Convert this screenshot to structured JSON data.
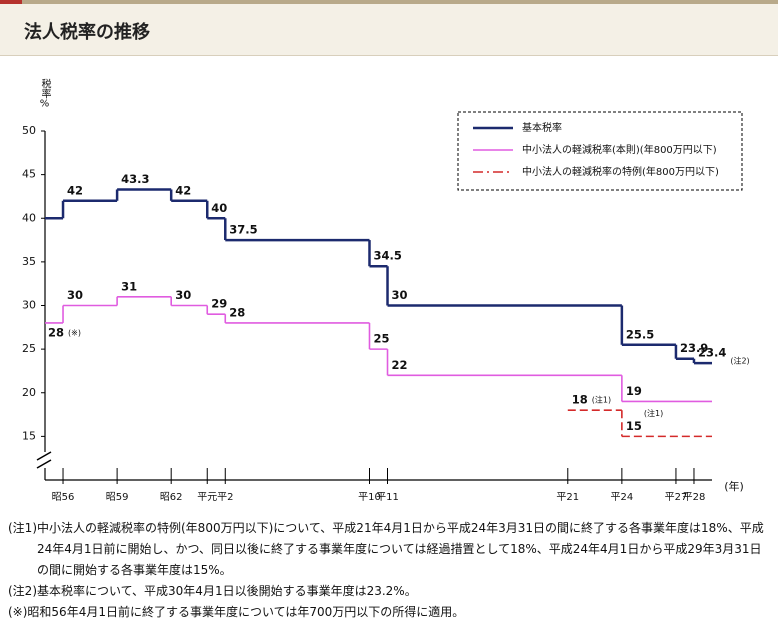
{
  "header": {
    "title": "法人税率の推移"
  },
  "chart_data": {
    "type": "step",
    "y_label": "税率%",
    "x_label": "(年)",
    "xlim": [
      1980,
      2017
    ],
    "ylim": [
      10,
      50
    ],
    "yticks": [
      15,
      20,
      25,
      30,
      35,
      40,
      45,
      50
    ],
    "xticks": [
      {
        "value": 1981,
        "label": "昭56"
      },
      {
        "value": 1984,
        "label": "昭59"
      },
      {
        "value": 1987,
        "label": "昭62"
      },
      {
        "value": 1989,
        "label": "平元"
      },
      {
        "value": 1990,
        "label": "平2"
      },
      {
        "value": 1998,
        "label": "平10"
      },
      {
        "value": 1999,
        "label": "平11"
      },
      {
        "value": 2009,
        "label": "平21"
      },
      {
        "value": 2012,
        "label": "平24"
      },
      {
        "value": 2015,
        "label": "平27"
      },
      {
        "value": 2016,
        "label": "平28"
      }
    ],
    "series": [
      {
        "name": "基本税率",
        "color": "#1c2a6e",
        "dash": false,
        "x": [
          1980,
          1981,
          1984,
          1987,
          1989,
          1990,
          1998,
          1999,
          2012,
          2015,
          2016
        ],
        "values": [
          40,
          42,
          43.3,
          42,
          40,
          37.5,
          34.5,
          30,
          25.5,
          23.9,
          23.4
        ],
        "point_notes": [
          null,
          null,
          null,
          null,
          null,
          null,
          null,
          null,
          null,
          null,
          "(注2)"
        ]
      },
      {
        "name": "中小法人の軽減税率(本則)(年800万円以下)",
        "color": "#e05ce0",
        "dash": false,
        "x": [
          1980,
          1981,
          1984,
          1987,
          1989,
          1990,
          1998,
          1999,
          2012
        ],
        "values": [
          28,
          30,
          31,
          30,
          29,
          28,
          25,
          22,
          19
        ],
        "point_notes": [
          "(※)",
          null,
          null,
          null,
          null,
          null,
          null,
          null,
          "(注1)"
        ]
      },
      {
        "name": "中小法人の軽減税率の特例(年800万円以下)",
        "color": "#d42a2a",
        "dash": true,
        "x": [
          2009,
          2012
        ],
        "values": [
          18,
          15
        ],
        "point_notes": [
          "(注1)",
          null
        ]
      }
    ]
  },
  "notes": [
    {
      "label": "(注1)",
      "text": "中小法人の軽減税率の特例(年800万円以下)について、平成21年4月1日から平成24年3月31日の間に終了する各事業年度は18%、平成24年4月1日前に開始し、かつ、同日以後に終了する事業年度については経過措置として18%、平成24年4月1日から平成29年3月31日の間に開始する各事業年度は15%。"
    },
    {
      "label": "(注2)",
      "text": "基本税率について、平成30年4月1日以後開始する事業年度は23.2%。"
    },
    {
      "label": "(※)",
      "text": "昭和56年4月1日前に終了する事業年度については年700万円以下の所得に適用。"
    }
  ]
}
